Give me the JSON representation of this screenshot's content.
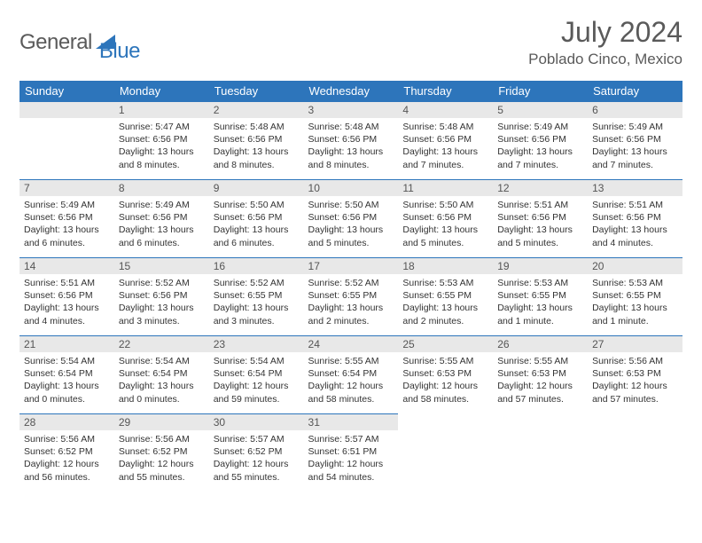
{
  "logo": {
    "text1": "General",
    "text2": "Blue"
  },
  "title": "July 2024",
  "location": "Poblado Cinco, Mexico",
  "colors": {
    "header_bg": "#2d75bb",
    "header_fg": "#ffffff",
    "daynum_bg": "#e8e8e8",
    "daynum_border": "#2d75bb",
    "text": "#333333",
    "title_text": "#5a5a5a",
    "logo_blue": "#2d75bb",
    "logo_gray": "#5a5a5a",
    "page_bg": "#ffffff"
  },
  "typography": {
    "title_fontsize": 32,
    "location_fontsize": 17,
    "dayheader_fontsize": 13,
    "daynum_fontsize": 12,
    "detail_fontsize": 10.5,
    "logo_fontsize": 24
  },
  "day_headers": [
    "Sunday",
    "Monday",
    "Tuesday",
    "Wednesday",
    "Thursday",
    "Friday",
    "Saturday"
  ],
  "weeks": [
    [
      null,
      {
        "n": "1",
        "sunrise": "Sunrise: 5:47 AM",
        "sunset": "Sunset: 6:56 PM",
        "daylight": "Daylight: 13 hours and 8 minutes."
      },
      {
        "n": "2",
        "sunrise": "Sunrise: 5:48 AM",
        "sunset": "Sunset: 6:56 PM",
        "daylight": "Daylight: 13 hours and 8 minutes."
      },
      {
        "n": "3",
        "sunrise": "Sunrise: 5:48 AM",
        "sunset": "Sunset: 6:56 PM",
        "daylight": "Daylight: 13 hours and 8 minutes."
      },
      {
        "n": "4",
        "sunrise": "Sunrise: 5:48 AM",
        "sunset": "Sunset: 6:56 PM",
        "daylight": "Daylight: 13 hours and 7 minutes."
      },
      {
        "n": "5",
        "sunrise": "Sunrise: 5:49 AM",
        "sunset": "Sunset: 6:56 PM",
        "daylight": "Daylight: 13 hours and 7 minutes."
      },
      {
        "n": "6",
        "sunrise": "Sunrise: 5:49 AM",
        "sunset": "Sunset: 6:56 PM",
        "daylight": "Daylight: 13 hours and 7 minutes."
      }
    ],
    [
      {
        "n": "7",
        "sunrise": "Sunrise: 5:49 AM",
        "sunset": "Sunset: 6:56 PM",
        "daylight": "Daylight: 13 hours and 6 minutes."
      },
      {
        "n": "8",
        "sunrise": "Sunrise: 5:49 AM",
        "sunset": "Sunset: 6:56 PM",
        "daylight": "Daylight: 13 hours and 6 minutes."
      },
      {
        "n": "9",
        "sunrise": "Sunrise: 5:50 AM",
        "sunset": "Sunset: 6:56 PM",
        "daylight": "Daylight: 13 hours and 6 minutes."
      },
      {
        "n": "10",
        "sunrise": "Sunrise: 5:50 AM",
        "sunset": "Sunset: 6:56 PM",
        "daylight": "Daylight: 13 hours and 5 minutes."
      },
      {
        "n": "11",
        "sunrise": "Sunrise: 5:50 AM",
        "sunset": "Sunset: 6:56 PM",
        "daylight": "Daylight: 13 hours and 5 minutes."
      },
      {
        "n": "12",
        "sunrise": "Sunrise: 5:51 AM",
        "sunset": "Sunset: 6:56 PM",
        "daylight": "Daylight: 13 hours and 5 minutes."
      },
      {
        "n": "13",
        "sunrise": "Sunrise: 5:51 AM",
        "sunset": "Sunset: 6:56 PM",
        "daylight": "Daylight: 13 hours and 4 minutes."
      }
    ],
    [
      {
        "n": "14",
        "sunrise": "Sunrise: 5:51 AM",
        "sunset": "Sunset: 6:56 PM",
        "daylight": "Daylight: 13 hours and 4 minutes."
      },
      {
        "n": "15",
        "sunrise": "Sunrise: 5:52 AM",
        "sunset": "Sunset: 6:56 PM",
        "daylight": "Daylight: 13 hours and 3 minutes."
      },
      {
        "n": "16",
        "sunrise": "Sunrise: 5:52 AM",
        "sunset": "Sunset: 6:55 PM",
        "daylight": "Daylight: 13 hours and 3 minutes."
      },
      {
        "n": "17",
        "sunrise": "Sunrise: 5:52 AM",
        "sunset": "Sunset: 6:55 PM",
        "daylight": "Daylight: 13 hours and 2 minutes."
      },
      {
        "n": "18",
        "sunrise": "Sunrise: 5:53 AM",
        "sunset": "Sunset: 6:55 PM",
        "daylight": "Daylight: 13 hours and 2 minutes."
      },
      {
        "n": "19",
        "sunrise": "Sunrise: 5:53 AM",
        "sunset": "Sunset: 6:55 PM",
        "daylight": "Daylight: 13 hours and 1 minute."
      },
      {
        "n": "20",
        "sunrise": "Sunrise: 5:53 AM",
        "sunset": "Sunset: 6:55 PM",
        "daylight": "Daylight: 13 hours and 1 minute."
      }
    ],
    [
      {
        "n": "21",
        "sunrise": "Sunrise: 5:54 AM",
        "sunset": "Sunset: 6:54 PM",
        "daylight": "Daylight: 13 hours and 0 minutes."
      },
      {
        "n": "22",
        "sunrise": "Sunrise: 5:54 AM",
        "sunset": "Sunset: 6:54 PM",
        "daylight": "Daylight: 13 hours and 0 minutes."
      },
      {
        "n": "23",
        "sunrise": "Sunrise: 5:54 AM",
        "sunset": "Sunset: 6:54 PM",
        "daylight": "Daylight: 12 hours and 59 minutes."
      },
      {
        "n": "24",
        "sunrise": "Sunrise: 5:55 AM",
        "sunset": "Sunset: 6:54 PM",
        "daylight": "Daylight: 12 hours and 58 minutes."
      },
      {
        "n": "25",
        "sunrise": "Sunrise: 5:55 AM",
        "sunset": "Sunset: 6:53 PM",
        "daylight": "Daylight: 12 hours and 58 minutes."
      },
      {
        "n": "26",
        "sunrise": "Sunrise: 5:55 AM",
        "sunset": "Sunset: 6:53 PM",
        "daylight": "Daylight: 12 hours and 57 minutes."
      },
      {
        "n": "27",
        "sunrise": "Sunrise: 5:56 AM",
        "sunset": "Sunset: 6:53 PM",
        "daylight": "Daylight: 12 hours and 57 minutes."
      }
    ],
    [
      {
        "n": "28",
        "sunrise": "Sunrise: 5:56 AM",
        "sunset": "Sunset: 6:52 PM",
        "daylight": "Daylight: 12 hours and 56 minutes."
      },
      {
        "n": "29",
        "sunrise": "Sunrise: 5:56 AM",
        "sunset": "Sunset: 6:52 PM",
        "daylight": "Daylight: 12 hours and 55 minutes."
      },
      {
        "n": "30",
        "sunrise": "Sunrise: 5:57 AM",
        "sunset": "Sunset: 6:52 PM",
        "daylight": "Daylight: 12 hours and 55 minutes."
      },
      {
        "n": "31",
        "sunrise": "Sunrise: 5:57 AM",
        "sunset": "Sunset: 6:51 PM",
        "daylight": "Daylight: 12 hours and 54 minutes."
      },
      null,
      null,
      null
    ]
  ]
}
